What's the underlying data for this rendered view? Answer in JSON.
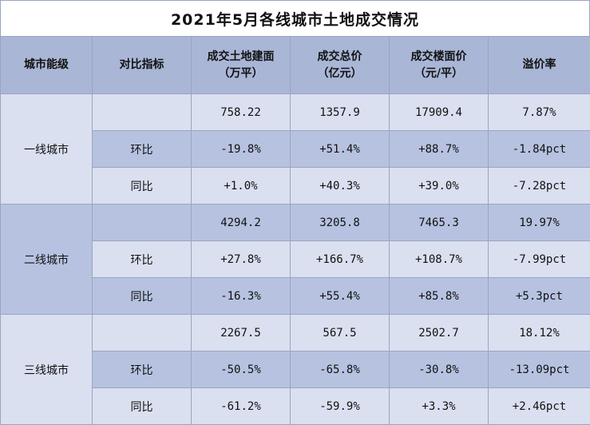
{
  "title": "2021年5月各线城市土地成交情况",
  "headers": [
    {
      "line1": "城市能级",
      "line2": ""
    },
    {
      "line1": "对比指标",
      "line2": ""
    },
    {
      "line1": "成交土地建面",
      "line2": "（万平）"
    },
    {
      "line1": "成交总价",
      "line2": "（亿元）"
    },
    {
      "line1": "成交楼面价",
      "line2": "（元/平）"
    },
    {
      "line1": "溢价率",
      "line2": ""
    }
  ],
  "groups": [
    {
      "region": "一线城市",
      "rows": [
        {
          "metric": "",
          "values": [
            "758.22",
            "1357.9",
            "17909.4",
            "7.87%"
          ]
        },
        {
          "metric": "环比",
          "values": [
            "-19.8%",
            "+51.4%",
            "+88.7%",
            "-1.84pct"
          ]
        },
        {
          "metric": "同比",
          "values": [
            "+1.0%",
            "+40.3%",
            "+39.0%",
            "-7.28pct"
          ]
        }
      ]
    },
    {
      "region": "二线城市",
      "rows": [
        {
          "metric": "",
          "values": [
            "4294.2",
            "3205.8",
            "7465.3",
            "19.97%"
          ]
        },
        {
          "metric": "环比",
          "values": [
            "+27.8%",
            "+166.7%",
            "+108.7%",
            "-7.99pct"
          ]
        },
        {
          "metric": "同比",
          "values": [
            "-16.3%",
            "+55.4%",
            "+85.8%",
            "+5.3pct"
          ]
        }
      ]
    },
    {
      "region": "三线城市",
      "rows": [
        {
          "metric": "",
          "values": [
            "2267.5",
            "567.5",
            "2502.7",
            "18.12%"
          ]
        },
        {
          "metric": "环比",
          "values": [
            "-50.5%",
            "-65.8%",
            "-30.8%",
            "-13.09pct"
          ]
        },
        {
          "metric": "同比",
          "values": [
            "-61.2%",
            "-59.9%",
            "+3.3%",
            "+2.46pct"
          ]
        }
      ]
    }
  ]
}
